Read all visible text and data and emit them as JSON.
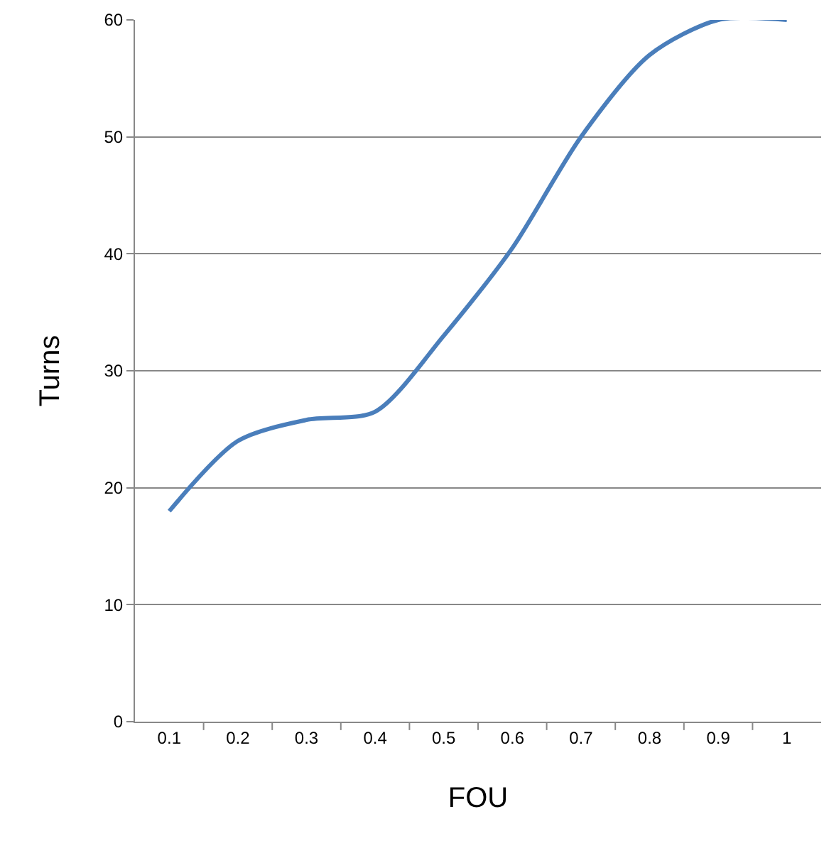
{
  "chart_data": {
    "type": "line",
    "xlabel": "FOU",
    "ylabel": "Turns",
    "categories": [
      "0.1",
      "0.2",
      "0.3",
      "0.4",
      "0.5",
      "0.6",
      "0.7",
      "0.8",
      "0.9",
      "1"
    ],
    "values": [
      18,
      24,
      25.8,
      26.5,
      33,
      40.5,
      50,
      57,
      60,
      60
    ],
    "color": "#4a7ebb",
    "ylim": [
      0,
      60
    ],
    "yticks": [
      0,
      10,
      20,
      30,
      40,
      50,
      60
    ],
    "grid": "y",
    "marker": "none",
    "line_style": "solid"
  }
}
